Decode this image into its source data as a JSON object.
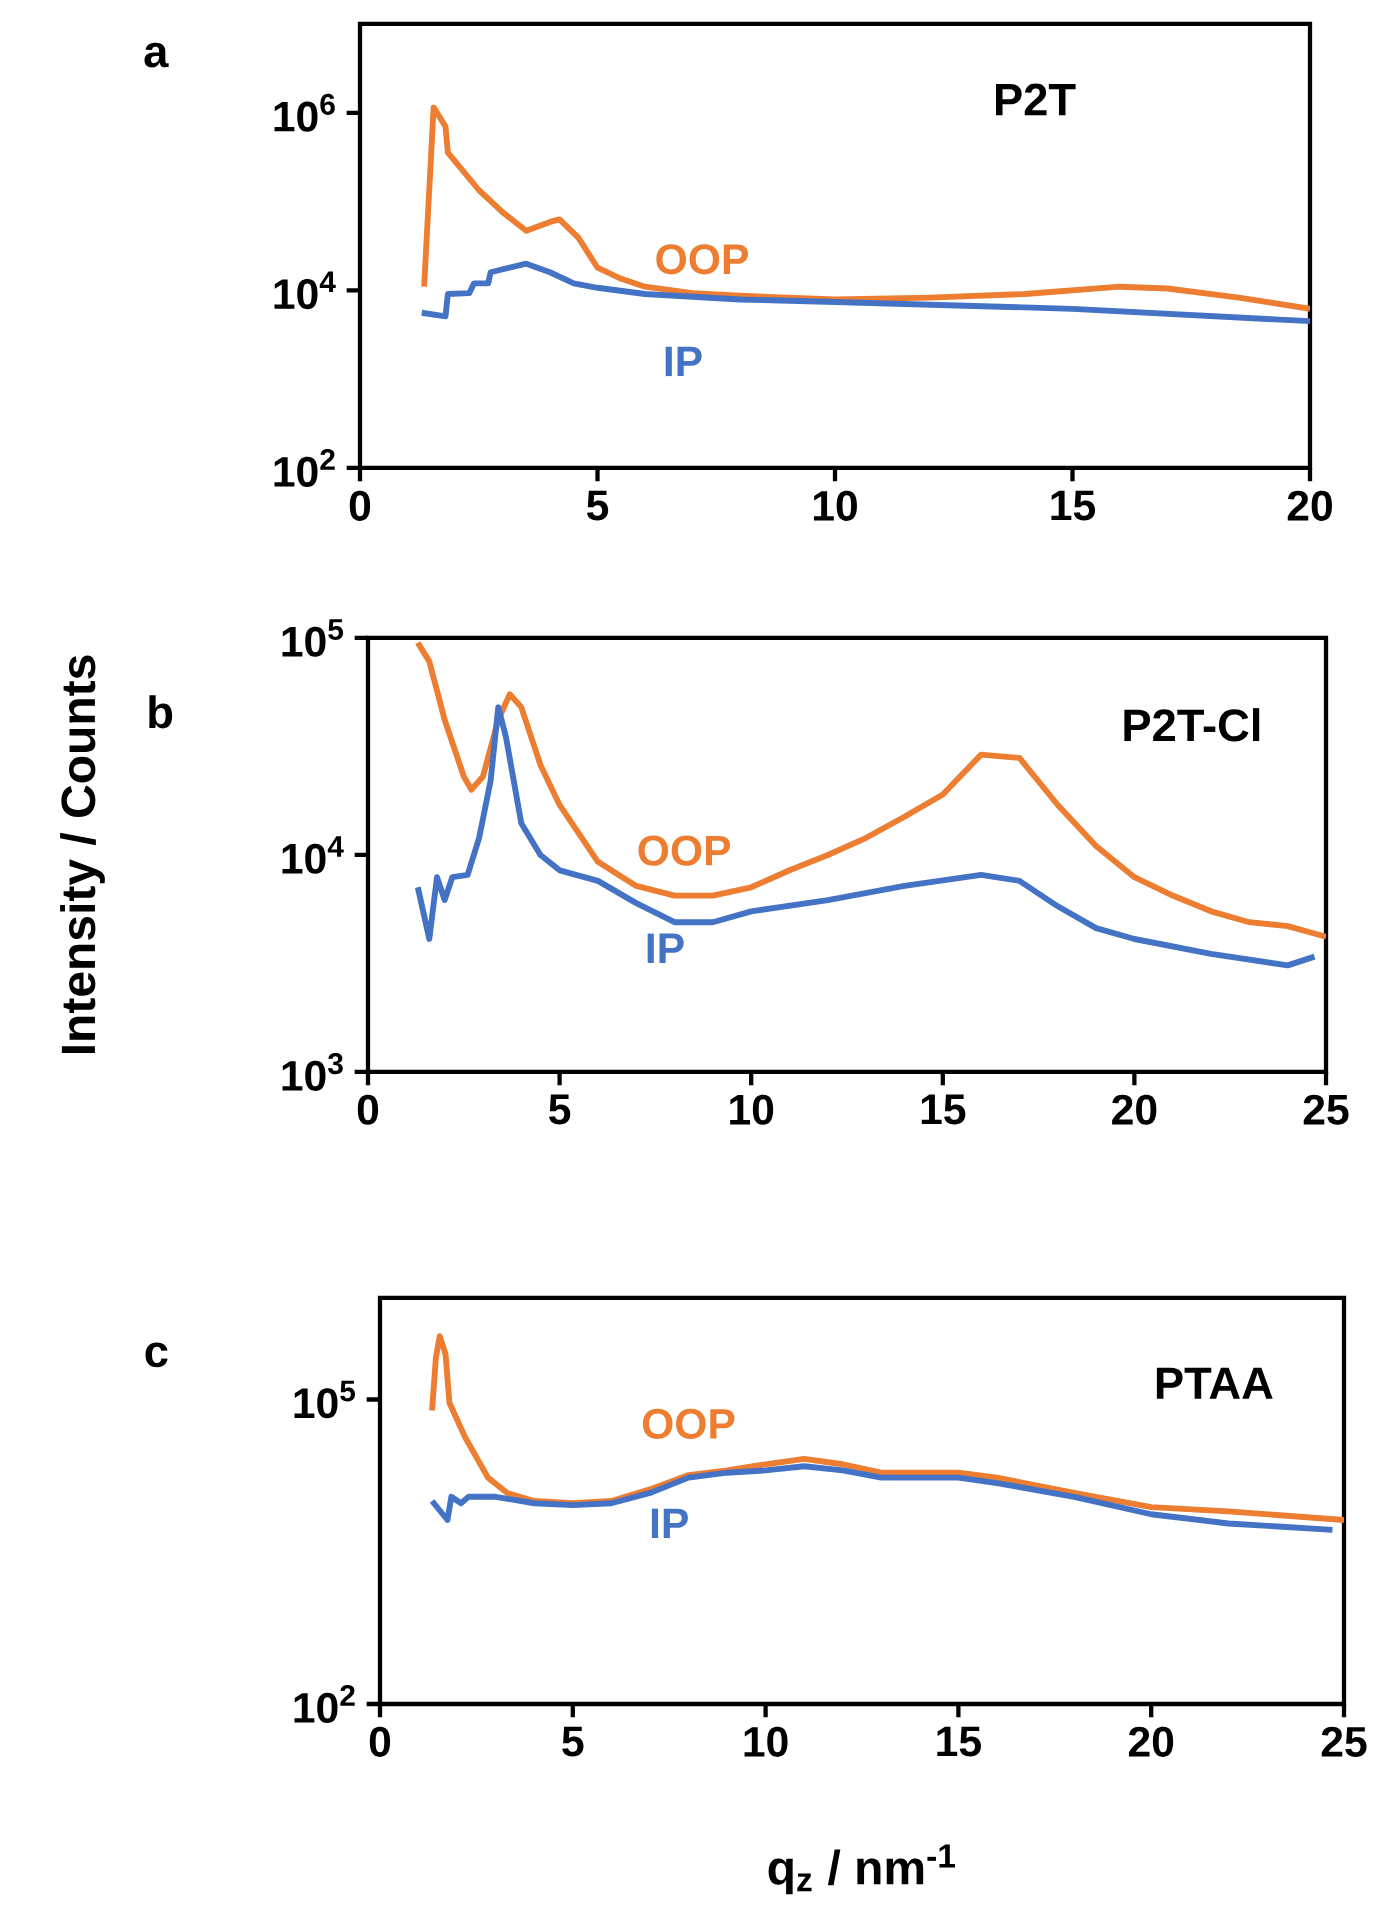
{
  "chart_data": [
    {
      "type": "line",
      "title": "P2T",
      "annotations": [
        "a"
      ],
      "log": "y",
      "xlim": [
        0,
        20
      ],
      "xticks": [
        0,
        5,
        10,
        15,
        20
      ],
      "ylim": [
        100,
        10000000
      ],
      "yticks": [
        {
          "value": 100,
          "label": "10$^{2}$"
        },
        {
          "value": 10000,
          "label": "10$^{4}$"
        },
        {
          "value": 1000000,
          "label": "10$^{6}$"
        }
      ],
      "series": [
        {
          "name": "OOP",
          "color": "#ed7d31",
          "x": [
            1.35,
            1.55,
            1.8,
            1.85,
            2.5,
            3,
            3.5,
            4,
            4.2,
            4.6,
            5,
            5.5,
            6,
            7,
            8,
            10,
            12,
            14,
            16,
            17,
            18.5,
            20
          ],
          "values": [
            11000,
            1150000,
            700000,
            355000,
            135000,
            76000,
            47000,
            59000,
            63000,
            39000,
            18000,
            13500,
            11000,
            9300,
            8700,
            7900,
            8300,
            9100,
            11000,
            10500,
            8300,
            6200
          ]
        },
        {
          "name": "IP",
          "color": "#4472c4",
          "x": [
            1.3,
            1.8,
            1.85,
            2.3,
            2.4,
            2.7,
            2.75,
            3.5,
            4,
            4.5,
            5,
            6,
            8,
            10,
            15,
            20
          ],
          "values": [
            5600,
            5100,
            9100,
            9300,
            12000,
            12000,
            16000,
            20000,
            16000,
            12000,
            10700,
            9100,
            7900,
            7400,
            6200,
            4500
          ]
        }
      ]
    },
    {
      "type": "line",
      "title": "P2T-Cl",
      "annotations": [
        "b"
      ],
      "ylabel": "Intensity / Counts",
      "log": "y",
      "xlim": [
        0,
        25
      ],
      "xticks": [
        0,
        5,
        10,
        15,
        20,
        25
      ],
      "ylim": [
        1000,
        100000
      ],
      "yticks": [
        {
          "value": 1000,
          "label": "10$^{3}$"
        },
        {
          "value": 10000,
          "label": "10$^{4}$"
        },
        {
          "value": 100000,
          "label": "10$^{5}$"
        }
      ],
      "series": [
        {
          "name": "OOP",
          "color": "#ed7d31",
          "x": [
            1.3,
            1.6,
            2,
            2.5,
            2.7,
            3.0,
            3.4,
            3.7,
            4.0,
            4.5,
            5,
            6,
            7,
            8,
            9,
            10,
            11,
            12,
            13,
            14,
            15,
            16,
            17,
            18,
            19,
            20,
            21,
            22,
            23,
            24,
            25
          ],
          "values": [
            95000,
            78000,
            42000,
            23000,
            20000,
            23000,
            42000,
            55000,
            48000,
            26000,
            17000,
            9300,
            7200,
            6500,
            6500,
            7100,
            8500,
            10000,
            12000,
            15000,
            19000,
            29000,
            28000,
            17000,
            11000,
            7900,
            6500,
            5500,
            4900,
            4700,
            4200
          ]
        },
        {
          "name": "IP",
          "color": "#4472c4",
          "x": [
            1.3,
            1.6,
            1.8,
            2.0,
            2.2,
            2.6,
            2.9,
            3.2,
            3.4,
            3.6,
            4,
            4.5,
            5,
            6,
            7,
            8,
            9,
            10,
            12,
            14,
            16,
            17,
            18,
            19,
            20,
            22,
            24,
            24.7
          ],
          "values": [
            7100,
            4100,
            7900,
            6200,
            7900,
            8100,
            12000,
            22000,
            48000,
            35000,
            14000,
            10000,
            8500,
            7600,
            6000,
            4900,
            4900,
            5500,
            6200,
            7200,
            8100,
            7600,
            5800,
            4600,
            4100,
            3500,
            3100,
            3400
          ]
        }
      ]
    },
    {
      "type": "line",
      "title": "PTAA",
      "annotations": [
        "c"
      ],
      "xlabel": "q$_{z}$ / nm$^{-1}$",
      "log": "y",
      "xlim": [
        0,
        25
      ],
      "xticks": [
        0,
        5,
        10,
        15,
        20,
        25
      ],
      "ylim": [
        100,
        1000000
      ],
      "yticks": [
        {
          "value": 100,
          "label": "10$^{2}$"
        },
        {
          "value": 100000,
          "label": "10$^{5}$"
        }
      ],
      "series": [
        {
          "name": "OOP",
          "color": "#ed7d31",
          "x": [
            1.35,
            1.45,
            1.55,
            1.7,
            1.8,
            2.2,
            2.8,
            3.3,
            4,
            5,
            6,
            7,
            8,
            9,
            10,
            11,
            12,
            13,
            15,
            16,
            18,
            20,
            22,
            25
          ],
          "values": [
            78000,
            260000,
            420000,
            280000,
            93000,
            43000,
            17000,
            12000,
            10000,
            9500,
            10000,
            13000,
            18000,
            20000,
            23000,
            26000,
            23000,
            19000,
            19000,
            17000,
            12000,
            8700,
            7900,
            6500
          ]
        },
        {
          "name": "IP",
          "color": "#4472c4",
          "x": [
            1.35,
            1.75,
            1.85,
            2.1,
            2.3,
            3,
            4,
            5,
            6,
            7,
            8,
            9,
            10,
            11,
            12,
            13,
            15,
            16,
            18,
            20,
            22,
            24.7
          ],
          "values": [
            10000,
            6500,
            11000,
            9500,
            11000,
            11000,
            9500,
            9100,
            9500,
            12000,
            17000,
            19000,
            20000,
            22000,
            20000,
            17000,
            17000,
            15000,
            11000,
            7400,
            6000,
            5200
          ]
        }
      ]
    }
  ]
}
